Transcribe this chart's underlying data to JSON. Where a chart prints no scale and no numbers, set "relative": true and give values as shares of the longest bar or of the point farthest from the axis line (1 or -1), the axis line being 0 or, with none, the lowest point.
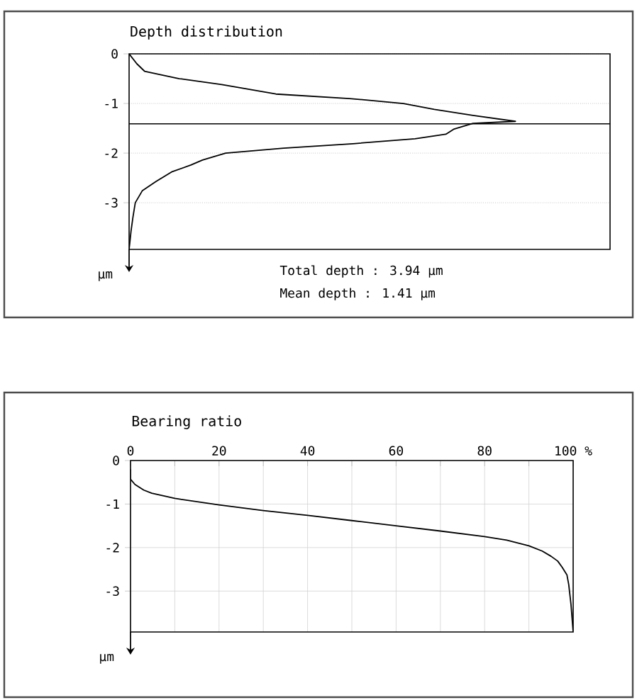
{
  "chart_data": [
    {
      "type": "line",
      "orientation": "horizontal",
      "relative": true,
      "title": "Depth distribution",
      "ylabel": "µm",
      "color": "#000000",
      "marker": "none",
      "line_style": "solid",
      "x": [
        0,
        -0.2,
        -0.35,
        -0.5,
        -0.62,
        -0.81,
        -0.9,
        -1.0,
        -1.12,
        -1.24,
        -1.36,
        -1.4,
        -1.52,
        -1.62,
        -1.71,
        -1.81,
        -1.9,
        -2.0,
        -2.14,
        -2.24,
        -2.38,
        -2.57,
        -2.76,
        -3.0,
        -3.29,
        -3.57,
        -3.94
      ],
      "values": [
        0,
        0.02,
        0.04,
        0.13,
        0.24,
        0.38,
        0.57,
        0.71,
        0.79,
        0.89,
        1.0,
        0.89,
        0.84,
        0.82,
        0.74,
        0.58,
        0.4,
        0.25,
        0.19,
        0.16,
        0.11,
        0.07,
        0.034,
        0.016,
        0.01,
        0.005,
        0
      ],
      "ylim": [
        -3.94,
        0
      ],
      "yticks": [
        0,
        -1,
        -2,
        -3
      ],
      "grid": "y",
      "tick_labels": "y",
      "ref_lines": [
        {
          "axis": "y",
          "value": -1.41
        }
      ],
      "annotations": [
        "Total depth : 3.94 µm",
        "Mean depth : 1.41 µm"
      ]
    },
    {
      "type": "line",
      "title": "Bearing ratio",
      "ylabel": "µm",
      "color": "#000000",
      "marker": "none",
      "line_style": "solid",
      "x": [
        0,
        0,
        1,
        3,
        4.8,
        10,
        20,
        30,
        40,
        50,
        60,
        70,
        80,
        85,
        90,
        93,
        95,
        96.5,
        97.5,
        98.6,
        99,
        99.5,
        100
      ],
      "values": [
        -0.2,
        -0.43,
        -0.55,
        -0.68,
        -0.75,
        -0.87,
        -1.02,
        -1.15,
        -1.26,
        -1.38,
        -1.5,
        -1.62,
        -1.75,
        -1.83,
        -1.96,
        -2.08,
        -2.2,
        -2.31,
        -2.45,
        -2.63,
        -2.85,
        -3.3,
        -3.94
      ],
      "xlim": [
        0,
        100
      ],
      "xticks": [
        0,
        {
          "value": 10,
          "label": null
        },
        20,
        {
          "value": 30,
          "label": null
        },
        40,
        {
          "value": 50,
          "label": null
        },
        60,
        {
          "value": 70,
          "label": null
        },
        80,
        {
          "value": 90,
          "label": null
        },
        {
          "value": 100,
          "label": "100 %"
        }
      ],
      "ylim": [
        -3.94,
        0
      ],
      "yticks": [
        0,
        -1,
        -2,
        -3
      ],
      "grid": true
    }
  ]
}
